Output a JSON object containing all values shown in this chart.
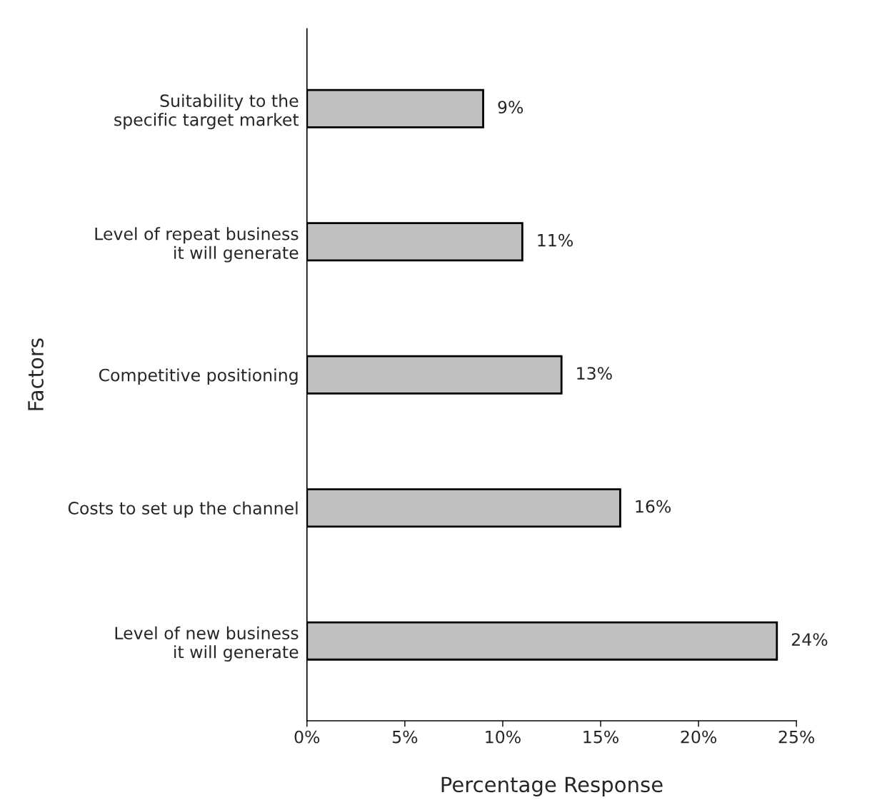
{
  "chart_data": {
    "type": "bar",
    "orientation": "horizontal",
    "xlabel": "Percentage Response",
    "ylabel": "Factors",
    "categories": [
      "Suitability to the\nspecific target market",
      "Level of repeat business\nit will generate",
      "Competitive positioning",
      "Costs to set up the channel",
      "Level of new business\nit will generate"
    ],
    "values": [
      9,
      11,
      13,
      16,
      24
    ],
    "value_labels": [
      "9%",
      "11%",
      "13%",
      "16%",
      "24%"
    ],
    "color": "#c0c0c0",
    "xlim": [
      0,
      25
    ],
    "xticks": [
      {
        "value": 0,
        "label": "0%"
      },
      {
        "value": 5,
        "label": "5%"
      },
      {
        "value": 10,
        "label": "10%"
      },
      {
        "value": 15,
        "label": "15%"
      },
      {
        "value": 20,
        "label": "20%"
      },
      {
        "value": 25,
        "label": "25%"
      }
    ],
    "grid": false
  }
}
